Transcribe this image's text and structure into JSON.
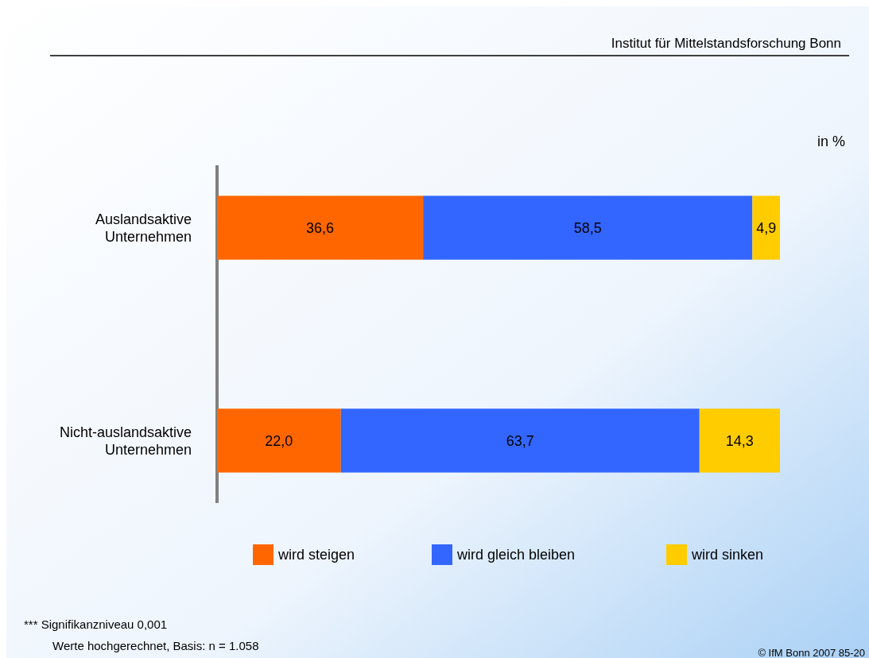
{
  "chart_data": {
    "type": "bar",
    "orientation": "horizontal",
    "stacked": true,
    "categories": [
      "Auslandsaktive\nUnternehmen",
      "Nicht-auslandsaktive\nUnternehmen"
    ],
    "series": [
      {
        "name": "wird steigen",
        "color": "#ff6600",
        "values": [
          36.6,
          22.0
        ],
        "value_labels": [
          "36,6",
          "22,0"
        ]
      },
      {
        "name": "wird gleich bleiben",
        "color": "#3366ff",
        "values": [
          58.5,
          63.7
        ],
        "value_labels": [
          "58,5",
          "63,7"
        ]
      },
      {
        "name": "wird sinken",
        "color": "#ffcc00",
        "values": [
          4.9,
          14.3
        ],
        "value_labels": [
          "4,9",
          "14,3"
        ]
      }
    ],
    "legend": "bottom",
    "annotations": [
      "Institut für Mittelstandsforschung Bonn",
      "in %",
      "*** Signifikanzniveau 0,001",
      "Werte hochgerechnet, Basis: n = 1.058",
      "© IfM Bonn 2007 85-20"
    ]
  }
}
